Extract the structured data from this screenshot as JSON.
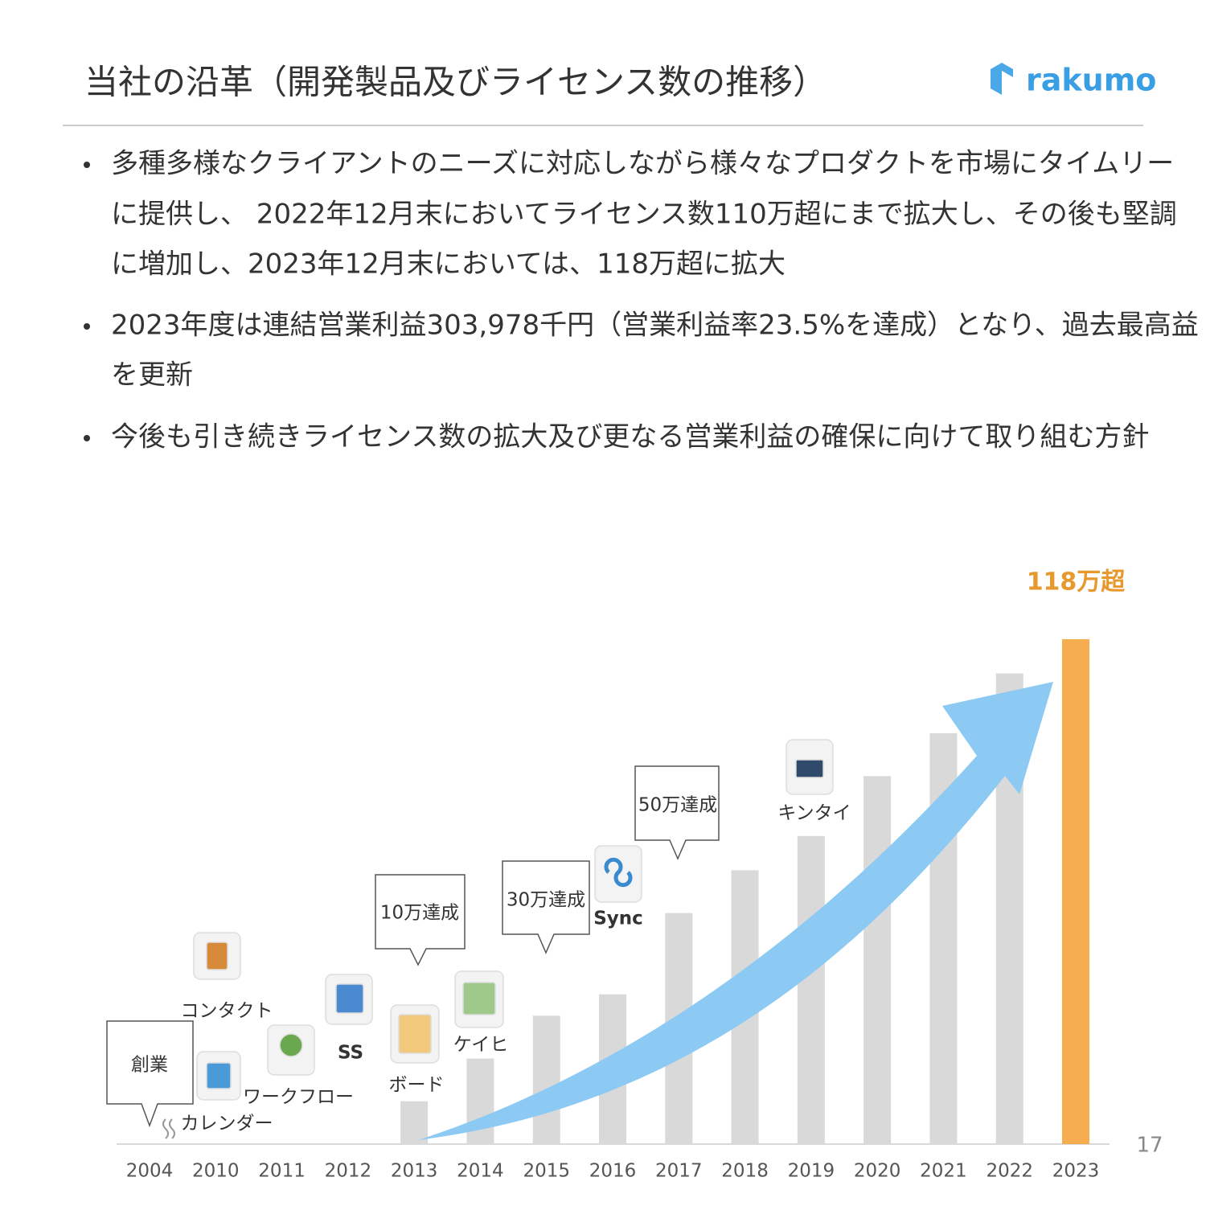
{
  "header": {
    "title": "当社の沿革（開発製品及びライセンス数の推移）",
    "logo": "rakumo"
  },
  "bullets": [
    [
      "多種多様なクライアントのニーズに対応しながら様々なプロダクトを市場にタイムリー",
      "に提供し、 2022年12月末においてライセンス数110万超にまで拡大し、その後も堅調",
      "に増加し、2023年12月末においては、118万超に拡大"
    ],
    [
      "2023年度は連結営業利益303,978千円（営業利益率23.5%を達成）となり、過去最高益",
      "を更新"
    ],
    [
      "今後も引き続きライセンス数の拡大及び更なる営業利益の確保に向けて取り組む方針"
    ]
  ],
  "chart_data": {
    "type": "bar",
    "categories": [
      "2004",
      "2010",
      "2011",
      "2012",
      "2013",
      "2014",
      "2015",
      "2016",
      "2017",
      "2018",
      "2019",
      "2020",
      "2021",
      "2022",
      "2023"
    ],
    "values": [
      0,
      0,
      0,
      0,
      10,
      20,
      30,
      35,
      54,
      64,
      72,
      86,
      96,
      110,
      118
    ],
    "value_labels": [
      null,
      null,
      null,
      null,
      null,
      null,
      null,
      null,
      null,
      null,
      null,
      null,
      null,
      null,
      "118万超"
    ],
    "colors": [
      "#d9d9d9",
      "#d9d9d9",
      "#d9d9d9",
      "#d9d9d9",
      "#d9d9d9",
      "#d9d9d9",
      "#d9d9d9",
      "#d9d9d9",
      "#d9d9d9",
      "#d9d9d9",
      "#d9d9d9",
      "#d9d9d9",
      "#d9d9d9",
      "#d9d9d9",
      "#f5ad4f"
    ],
    "ylim": [
      0,
      118
    ],
    "callouts": [
      "創業",
      "10万達成",
      "30万達成",
      "50万達成"
    ],
    "products": [
      "コンタクト",
      "カレンダー",
      "ワークフロー",
      "SS",
      "ボード",
      "ケイヒ",
      "Sync",
      "キンタイ"
    ]
  },
  "page_number": "17"
}
